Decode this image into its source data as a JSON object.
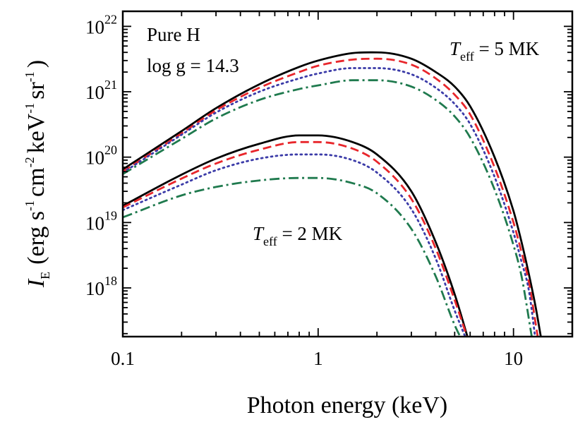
{
  "chart_data": {
    "type": "line",
    "x_scale": "log",
    "y_scale": "log",
    "xlabel": "Photon energy (keV)",
    "ylabel": {
      "symbol": "I",
      "symbol_subscript": "E",
      "units_open": "(erg s",
      "units_exp1": "-1",
      "units_cm": "cm",
      "units_exp2": "-2",
      "units_kev": "keV",
      "units_exp3": "-1",
      "units_sr": "sr",
      "units_exp4": "-1",
      "units_close": ")"
    },
    "xlim": [
      0.1,
      20
    ],
    "ylim": [
      1.8e+17,
      1.7e+22
    ],
    "x_ticks": [
      {
        "value": 0.1,
        "label": "0.1"
      },
      {
        "value": 1,
        "label": "1"
      },
      {
        "value": 10,
        "label": "10"
      }
    ],
    "y_ticks": [
      {
        "value": 1e+18,
        "base": "10",
        "exp": "18"
      },
      {
        "value": 1e+19,
        "base": "10",
        "exp": "19"
      },
      {
        "value": 1e+20,
        "base": "10",
        "exp": "20"
      },
      {
        "value": 1e+21,
        "base": "10",
        "exp": "21"
      },
      {
        "value": 1e+22,
        "base": "10",
        "exp": "22"
      }
    ],
    "annotations": {
      "composition": "Pure H",
      "gravity": "log g = 14.3",
      "hot_label": {
        "symbol": "T",
        "subscript": "eff",
        "text": " = 5 MK"
      },
      "cool_label": {
        "symbol": "T",
        "subscript": "eff",
        "text": " = 2 MK"
      }
    },
    "styles": [
      {
        "color": "#000000",
        "dash": "",
        "width": 2.8
      },
      {
        "color": "#e8262b",
        "dash": "12 6",
        "width": 2.8
      },
      {
        "color": "#3b3ba8",
        "dash": "2 5",
        "width": 2.8
      },
      {
        "color": "#1f7a4e",
        "dash": "14 5 3 5",
        "width": 2.8
      }
    ],
    "groups": [
      {
        "label": "T_eff = 5 MK",
        "series": [
          {
            "style": 0,
            "points": [
              [
                0.1,
                6.5e+19
              ],
              [
                0.2,
                2.5e+20
              ],
              [
                0.3,
                5.6e+20
              ],
              [
                0.5,
                1.3e+21
              ],
              [
                0.8,
                2.4e+21
              ],
              [
                1,
                3e+21
              ],
              [
                1.5,
                3.9e+21
              ],
              [
                2,
                4e+21
              ],
              [
                3,
                3.2e+21
              ],
              [
                4,
                2e+21
              ],
              [
                5,
                1.2e+21
              ],
              [
                6,
                6e+20
              ],
              [
                8,
                1e+20
              ],
              [
                10,
                1.5e+19
              ],
              [
                11,
                5e+18
              ],
              [
                12,
                1.6e+18
              ],
              [
                13,
                5e+17
              ],
              [
                13.8,
                1.8e+17
              ]
            ]
          },
          {
            "style": 1,
            "points": [
              [
                0.1,
                6e+19
              ],
              [
                0.2,
                2.3e+20
              ],
              [
                0.3,
                5.2e+20
              ],
              [
                0.5,
                1.15e+21
              ],
              [
                0.8,
                2e+21
              ],
              [
                1,
                2.5e+21
              ],
              [
                1.5,
                3.1e+21
              ],
              [
                2,
                3.2e+21
              ],
              [
                3,
                2.6e+21
              ],
              [
                4,
                1.6e+21
              ],
              [
                5,
                9e+20
              ],
              [
                6,
                4.5e+20
              ],
              [
                8,
                7e+19
              ],
              [
                10,
                1e+19
              ],
              [
                11,
                3.5e+18
              ],
              [
                12,
                1.2e+18
              ],
              [
                13.3,
                1.8e+17
              ]
            ]
          },
          {
            "style": 2,
            "points": [
              [
                0.1,
                5.8e+19
              ],
              [
                0.2,
                2.2e+20
              ],
              [
                0.3,
                4.8e+20
              ],
              [
                0.5,
                1e+21
              ],
              [
                0.8,
                1.6e+21
              ],
              [
                1,
                1.9e+21
              ],
              [
                1.5,
                2.3e+21
              ],
              [
                2,
                2.3e+21
              ],
              [
                3,
                1.85e+21
              ],
              [
                4,
                1.15e+21
              ],
              [
                5,
                6.5e+20
              ],
              [
                6,
                3.2e+20
              ],
              [
                8,
                5e+19
              ],
              [
                10,
                7e+18
              ],
              [
                11,
                2.5e+18
              ],
              [
                12,
                9e+17
              ],
              [
                12.9,
                1.8e+17
              ]
            ]
          },
          {
            "style": 3,
            "points": [
              [
                0.1,
                5.5e+19
              ],
              [
                0.2,
                1.9e+20
              ],
              [
                0.3,
                3.9e+20
              ],
              [
                0.5,
                7.5e+20
              ],
              [
                0.8,
                1.1e+21
              ],
              [
                1,
                1.25e+21
              ],
              [
                1.5,
                1.5e+21
              ],
              [
                2,
                1.5e+21
              ],
              [
                3,
                1.2e+21
              ],
              [
                4,
                7.5e+20
              ],
              [
                5,
                4.2e+20
              ],
              [
                6,
                2e+20
              ],
              [
                8,
                3.2e+19
              ],
              [
                10,
                4.5e+18
              ],
              [
                11,
                1.5e+18
              ],
              [
                12.4,
                1.8e+17
              ]
            ]
          }
        ]
      },
      {
        "label": "T_eff = 2 MK",
        "series": [
          {
            "style": 0,
            "points": [
              [
                0.1,
                1.8e+19
              ],
              [
                0.2,
                5.4e+19
              ],
              [
                0.3,
                9.5e+19
              ],
              [
                0.5,
                1.6e+20
              ],
              [
                0.8,
                2.15e+20
              ],
              [
                1,
                2.15e+20
              ],
              [
                1.5,
                1.7e+20
              ],
              [
                2,
                1.1e+20
              ],
              [
                3,
                3e+19
              ],
              [
                4,
                5e+18
              ],
              [
                5,
                8e+17
              ],
              [
                6,
                1.3e+17
              ]
            ]
          },
          {
            "style": 1,
            "points": [
              [
                0.1,
                1.7e+19
              ],
              [
                0.2,
                4.7e+19
              ],
              [
                0.3,
                8e+19
              ],
              [
                0.5,
                1.3e+20
              ],
              [
                0.8,
                1.7e+20
              ],
              [
                1,
                1.7e+20
              ],
              [
                1.5,
                1.35e+20
              ],
              [
                2,
                8.5e+19
              ],
              [
                3,
                2.3e+19
              ],
              [
                4,
                4e+18
              ],
              [
                5,
                6.5e+17
              ],
              [
                5.9,
                1.5e+17
              ]
            ]
          },
          {
            "style": 2,
            "points": [
              [
                0.1,
                1.55e+19
              ],
              [
                0.2,
                3.8e+19
              ],
              [
                0.3,
                6.3e+19
              ],
              [
                0.5,
                9.5e+19
              ],
              [
                0.8,
                1.1e+20
              ],
              [
                1,
                1.1e+20
              ],
              [
                1.5,
                9e+19
              ],
              [
                2,
                5.8e+19
              ],
              [
                3,
                1.6e+19
              ],
              [
                4,
                2.8e+18
              ],
              [
                5,
                4.5e+17
              ],
              [
                5.8,
                1.5e+17
              ]
            ]
          },
          {
            "style": 3,
            "points": [
              [
                0.1,
                1.2e+19
              ],
              [
                0.2,
                2.6e+19
              ],
              [
                0.3,
                3.5e+19
              ],
              [
                0.5,
                4.4e+19
              ],
              [
                0.8,
                4.8e+19
              ],
              [
                1,
                4.8e+19
              ],
              [
                1.5,
                4e+19
              ],
              [
                2,
                2.8e+19
              ],
              [
                3,
                8e+18
              ],
              [
                4,
                1.5e+18
              ],
              [
                5,
                2.7e+17
              ],
              [
                5.5,
                1.5e+17
              ]
            ]
          }
        ]
      }
    ]
  }
}
